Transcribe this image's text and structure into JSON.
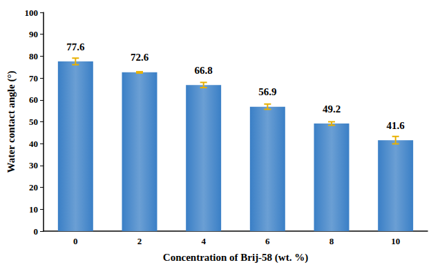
{
  "chart_data": {
    "type": "bar",
    "x_label": "Concentration of Brij-58 (wt. %)",
    "y_label": "Water contact angle (°)",
    "categories": [
      "0",
      "2",
      "4",
      "6",
      "8",
      "10"
    ],
    "values": [
      77.6,
      72.6,
      66.8,
      56.9,
      49.2,
      41.6
    ],
    "errors": [
      1.5,
      0.3,
      1.2,
      1.2,
      0.8,
      1.7
    ],
    "color": "#3a7fc6",
    "error_color": "#e8b000",
    "ylim": [
      0,
      100
    ],
    "yticks": [
      0,
      10,
      20,
      30,
      40,
      50,
      60,
      70,
      80,
      90,
      100
    ],
    "grid": false,
    "data_labels": true
  }
}
